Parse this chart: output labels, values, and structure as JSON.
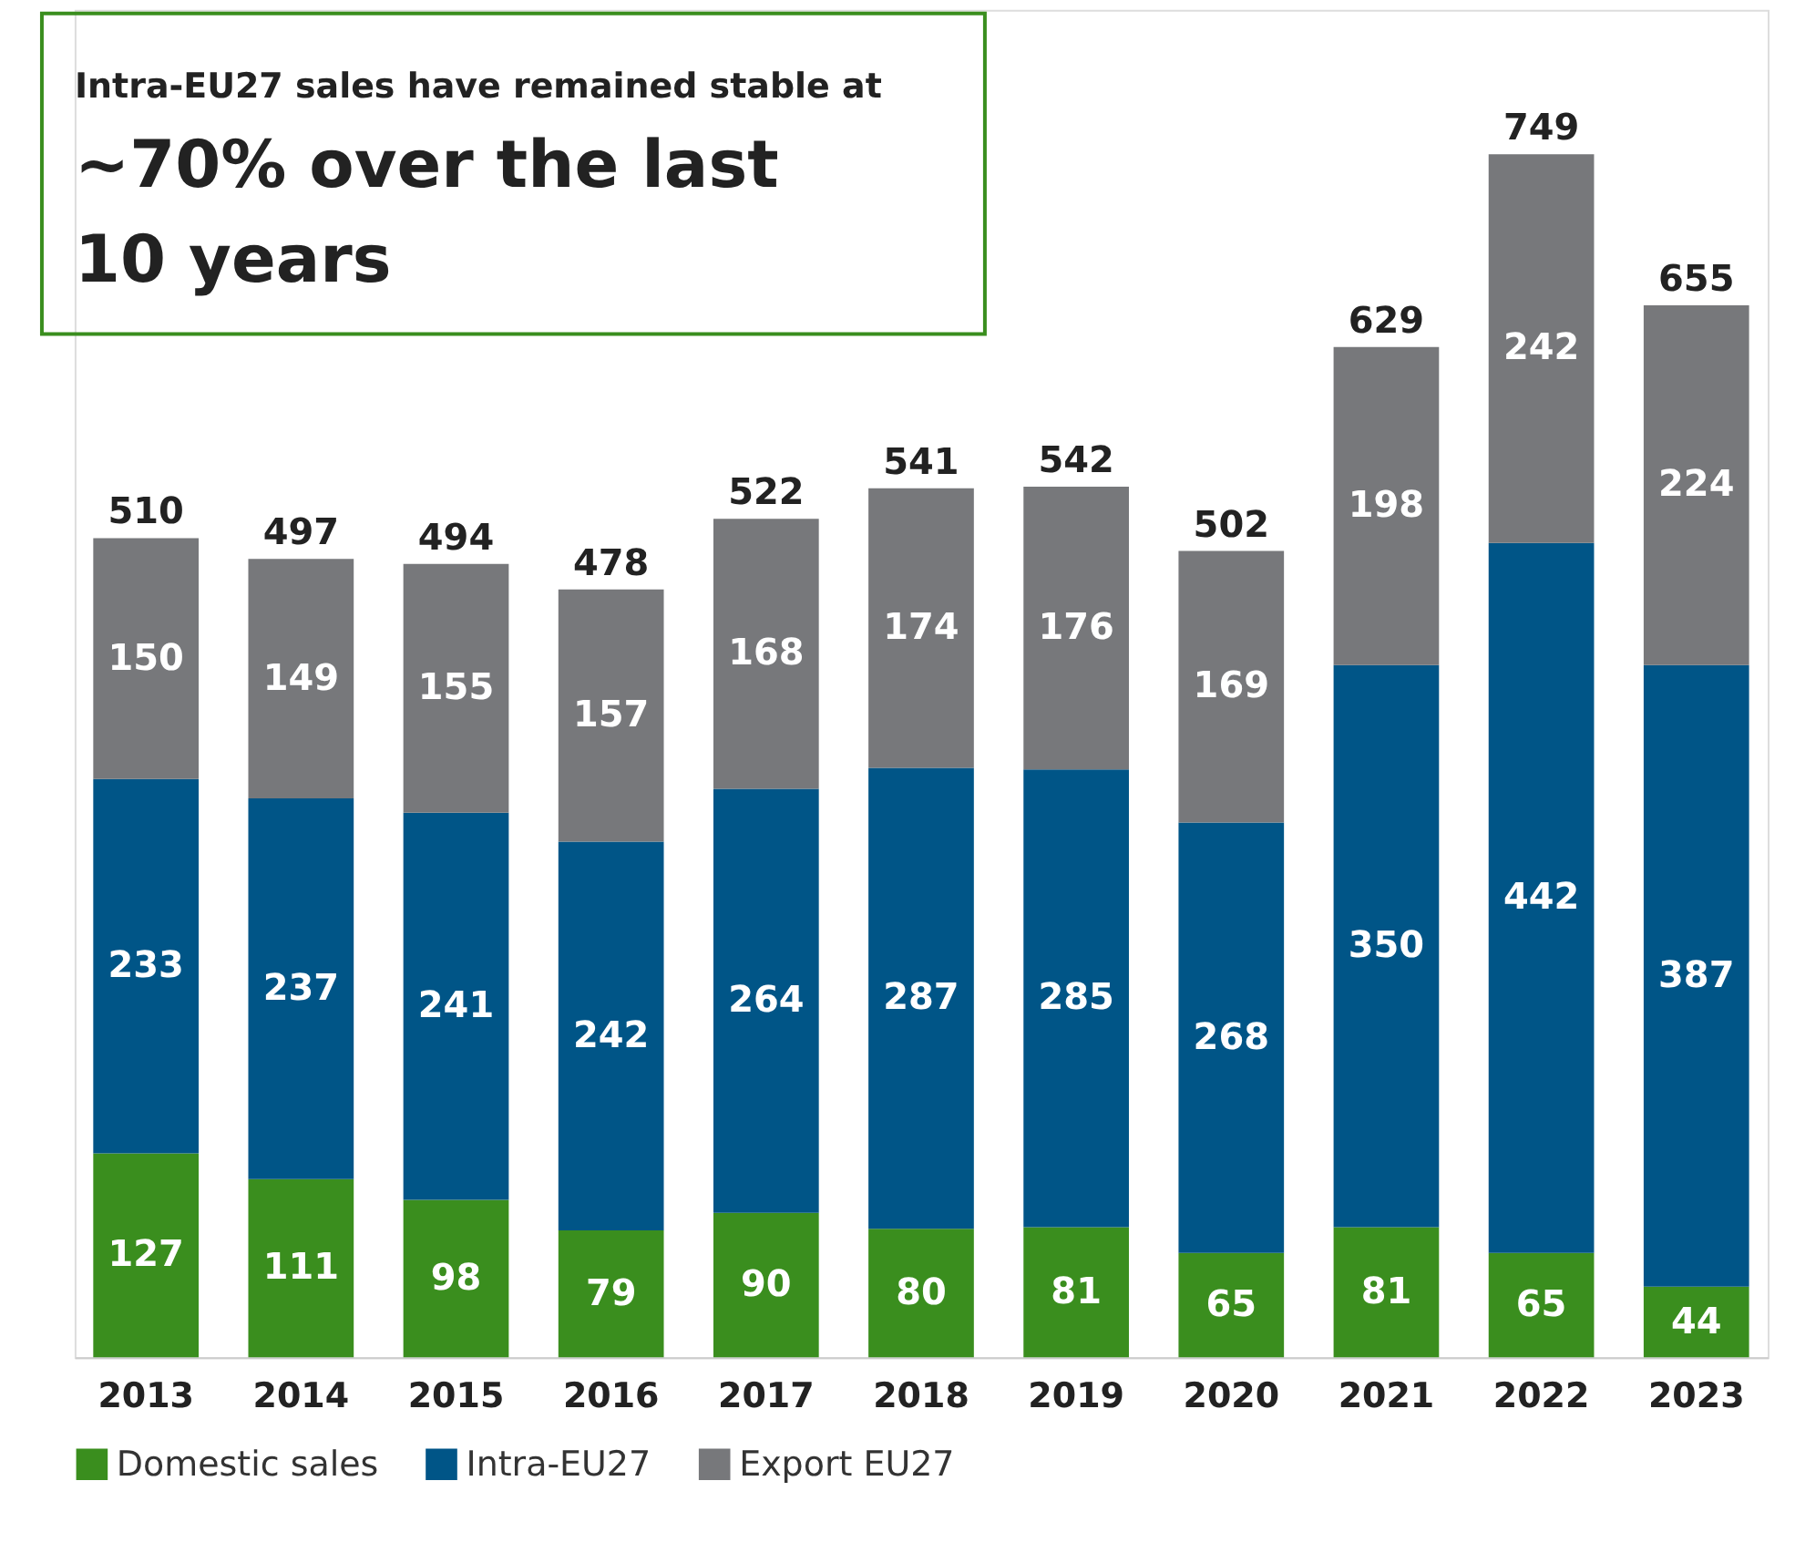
{
  "chart_data": {
    "type": "bar",
    "title": "Intra-EU27 sales have remained stable at",
    "subtitle": "~70% over the last 10 years",
    "categories": [
      "2013",
      "2014",
      "2015",
      "2016",
      "2017",
      "2018",
      "2019",
      "2020",
      "2021",
      "2022",
      "2023"
    ],
    "stacked": true,
    "data_labels": true,
    "legend": "bottom left",
    "grid": false,
    "series": [
      {
        "name": "Domestic sales",
        "color": "#3a8e1e",
        "values": [
          127,
          111,
          98,
          79,
          90,
          80,
          81,
          65,
          81,
          65,
          44
        ]
      },
      {
        "name": "Intra-EU27",
        "color": "#005587",
        "values": [
          233,
          237,
          241,
          242,
          264,
          287,
          285,
          268,
          350,
          442,
          387
        ]
      },
      {
        "name": "Export EU27",
        "color": "#77787b",
        "values": [
          150,
          149,
          155,
          157,
          168,
          174,
          176,
          169,
          198,
          242,
          224
        ]
      }
    ],
    "totals": [
      "510",
      "497",
      "494",
      "478",
      "522",
      "541",
      "542",
      "502",
      "629",
      "749",
      "655"
    ]
  }
}
